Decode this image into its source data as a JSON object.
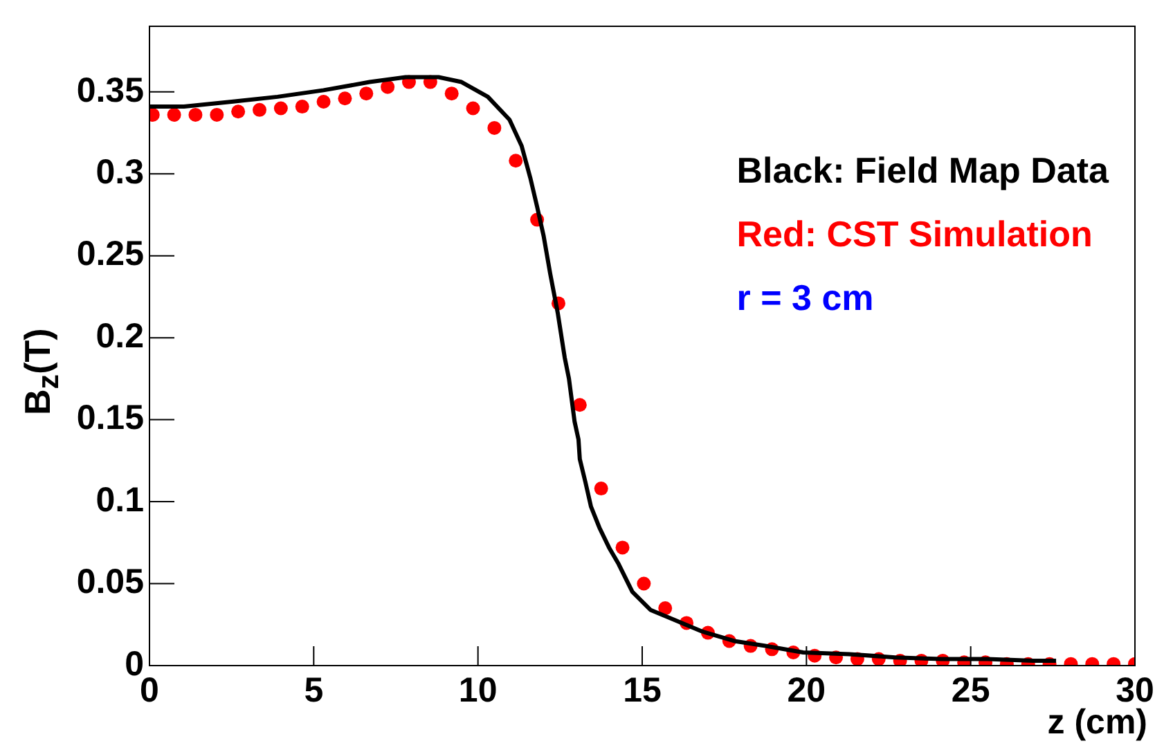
{
  "chart_data": {
    "type": "line",
    "xlabel": "z (cm)",
    "ylabel": "B$_{z}$(T)",
    "xlim": [
      0,
      30
    ],
    "ylim": [
      0,
      0.39
    ],
    "xticks": [
      0,
      5,
      10,
      15,
      20,
      25,
      30
    ],
    "yticks": [
      0,
      0.05,
      0.1,
      0.15,
      0.2,
      0.25,
      0.3,
      0.35
    ],
    "grid": false,
    "legend": "top right",
    "line_style": "solid",
    "annotations": [
      "r = 3 cm"
    ],
    "series": [
      {
        "name": "Black: Field Map Data",
        "color": "#000000",
        "type": "line",
        "marker": "none",
        "x": [
          0,
          1.05,
          2.5,
          3.9,
          5.3,
          6.7,
          7.8,
          8.8,
          9.5,
          10.3,
          10.96,
          11.33,
          11.6,
          11.8,
          12.0,
          12.2,
          12.43,
          12.64,
          12.77,
          12.94,
          13.06,
          13.1,
          13.27,
          13.44,
          13.7,
          13.99,
          14.28,
          14.7,
          15.25,
          15.97,
          16.8,
          17.8,
          18.75,
          19.9,
          21.3,
          22.7,
          24.1,
          25.5,
          26.9,
          27.6
        ],
        "values": [
          0.341,
          0.341,
          0.344,
          0.347,
          0.351,
          0.356,
          0.359,
          0.359,
          0.356,
          0.347,
          0.333,
          0.317,
          0.297,
          0.28,
          0.262,
          0.239,
          0.215,
          0.188,
          0.175,
          0.149,
          0.138,
          0.126,
          0.112,
          0.097,
          0.084,
          0.072,
          0.062,
          0.045,
          0.034,
          0.028,
          0.021,
          0.015,
          0.012,
          0.008,
          0.007,
          0.005,
          0.004,
          0.004,
          0.003,
          0.003
        ]
      },
      {
        "name": "Red: CST Simulation",
        "color": "#ff0000",
        "type": "scatter",
        "marker": "circle",
        "x": [
          0.1,
          0.75,
          1.4,
          2.05,
          2.7,
          3.35,
          4.0,
          4.65,
          5.3,
          5.95,
          6.6,
          7.25,
          7.9,
          8.55,
          9.2,
          9.85,
          10.5,
          11.15,
          11.8,
          12.45,
          13.1,
          13.75,
          14.4,
          15.05,
          15.7,
          16.35,
          17.0,
          17.65,
          18.3,
          18.95,
          19.6,
          20.25,
          20.9,
          21.55,
          22.2,
          22.85,
          23.5,
          24.15,
          24.8,
          25.45,
          26.1,
          26.75,
          27.4,
          28.05,
          28.7,
          29.35,
          30.0
        ],
        "values": [
          0.336,
          0.336,
          0.336,
          0.336,
          0.338,
          0.339,
          0.34,
          0.341,
          0.344,
          0.346,
          0.349,
          0.353,
          0.356,
          0.356,
          0.349,
          0.34,
          0.328,
          0.308,
          0.272,
          0.221,
          0.159,
          0.108,
          0.072,
          0.05,
          0.035,
          0.026,
          0.02,
          0.015,
          0.012,
          0.01,
          0.008,
          0.006,
          0.005,
          0.004,
          0.004,
          0.003,
          0.003,
          0.003,
          0.002,
          0.002,
          0.001,
          0.001,
          0.001,
          0.001,
          0.001,
          0.001,
          0.001
        ]
      }
    ]
  }
}
